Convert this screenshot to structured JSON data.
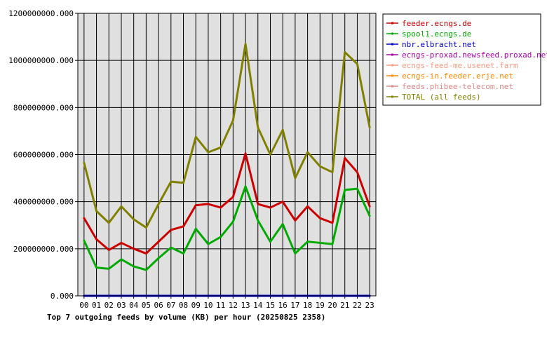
{
  "chart_data": {
    "type": "line",
    "title": "Top 7 outgoing feeds by volume (KB) per hour (20250825 2358)",
    "xlabel": "",
    "ylabel": "",
    "ylim": [
      0,
      1200000000
    ],
    "yticks": [
      0,
      200000000,
      400000000,
      600000000,
      800000000,
      1000000000,
      1200000000
    ],
    "ytick_labels": [
      "0.000",
      "200000000.000",
      "400000000.000",
      "600000000.000",
      "800000000.000",
      "1000000000.000",
      "1200000000.000"
    ],
    "grid": true,
    "legend_position": "top-right",
    "categories": [
      "00",
      "01",
      "02",
      "03",
      "04",
      "05",
      "06",
      "07",
      "08",
      "09",
      "10",
      "11",
      "12",
      "13",
      "14",
      "15",
      "16",
      "17",
      "18",
      "19",
      "20",
      "21",
      "22",
      "23"
    ],
    "series": [
      {
        "name": "feeder.ecngs.de",
        "color": "#cc0000",
        "values": [
          330000000,
          240000000,
          195000000,
          225000000,
          200000000,
          180000000,
          230000000,
          280000000,
          295000000,
          385000000,
          390000000,
          375000000,
          420000000,
          605000000,
          390000000,
          375000000,
          400000000,
          320000000,
          380000000,
          330000000,
          310000000,
          585000000,
          525000000,
          380000000
        ]
      },
      {
        "name": "spool1.ecngs.de",
        "color": "#00aa00",
        "values": [
          235000000,
          120000000,
          115000000,
          155000000,
          125000000,
          110000000,
          160000000,
          205000000,
          180000000,
          285000000,
          220000000,
          250000000,
          315000000,
          465000000,
          320000000,
          230000000,
          305000000,
          180000000,
          230000000,
          225000000,
          220000000,
          450000000,
          455000000,
          340000000
        ]
      },
      {
        "name": "nbr.elbracht.net",
        "color": "#0000cc",
        "values": [
          0,
          0,
          0,
          0,
          0,
          0,
          0,
          0,
          0,
          0,
          0,
          0,
          0,
          0,
          0,
          0,
          0,
          0,
          0,
          0,
          0,
          0,
          0,
          0
        ]
      },
      {
        "name": "ecngs-proxad.newsfeed.proxad.net",
        "color": "#aa00aa",
        "values": [
          0,
          0,
          0,
          0,
          0,
          0,
          0,
          0,
          0,
          0,
          0,
          0,
          0,
          0,
          0,
          0,
          0,
          0,
          0,
          0,
          0,
          0,
          0,
          0
        ]
      },
      {
        "name": "ecngs-feed-me.usenet.farm",
        "color": "#ff9980",
        "values": [
          0,
          0,
          0,
          0,
          0,
          0,
          0,
          0,
          0,
          0,
          0,
          0,
          0,
          0,
          0,
          0,
          0,
          0,
          0,
          0,
          0,
          0,
          0,
          0
        ]
      },
      {
        "name": "ecngs-in.feeder.erje.net",
        "color": "#ff8800",
        "values": [
          0,
          0,
          0,
          0,
          0,
          0,
          0,
          0,
          0,
          0,
          0,
          0,
          0,
          0,
          0,
          0,
          0,
          0,
          0,
          0,
          0,
          0,
          0,
          0
        ]
      },
      {
        "name": "feeds.phibee-telecom.net",
        "color": "#dd8888",
        "values": [
          0,
          0,
          0,
          0,
          0,
          0,
          0,
          0,
          0,
          0,
          0,
          0,
          0,
          0,
          0,
          0,
          0,
          0,
          0,
          0,
          0,
          0,
          0,
          0
        ]
      },
      {
        "name": "TOTAL (all feeds)",
        "color": "#808000",
        "values": [
          565000000,
          360000000,
          310000000,
          380000000,
          325000000,
          290000000,
          390000000,
          485000000,
          480000000,
          675000000,
          610000000,
          630000000,
          745000000,
          1070000000,
          715000000,
          600000000,
          705000000,
          500000000,
          610000000,
          550000000,
          525000000,
          1035000000,
          985000000,
          715000000
        ]
      }
    ]
  }
}
